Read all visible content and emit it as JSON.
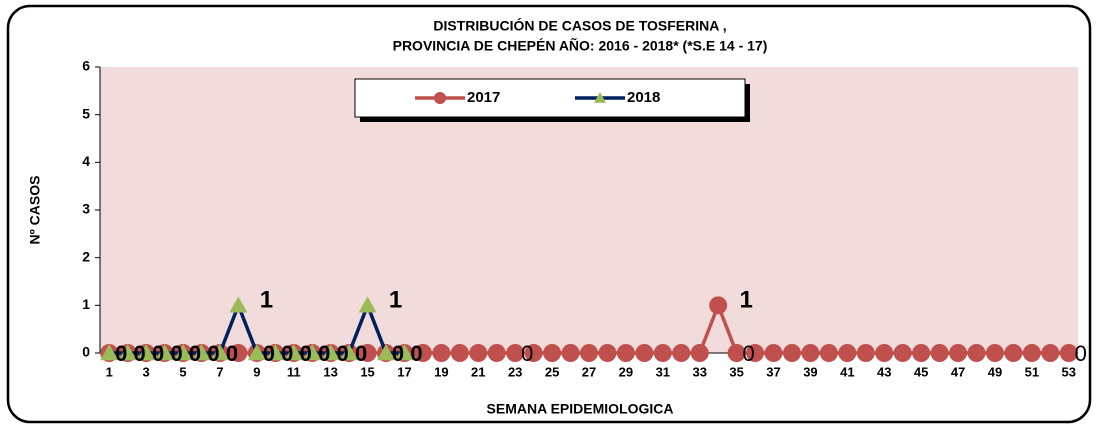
{
  "chart_data": {
    "type": "line",
    "title": [
      "DISTRIBUCIÓN DE CASOS DE TOSFERINA ,",
      "PROVINCIA  DE CHEPÉN  AÑO:  2016 - 2018* (*S.E 14 - 17)"
    ],
    "x_label": "SEMANA EPIDEMIOLOGICA",
    "y_label": "Nº CASOS",
    "categories": [
      1,
      null,
      3,
      null,
      5,
      null,
      7,
      null,
      9,
      null,
      11,
      null,
      13,
      null,
      15,
      null,
      17,
      null,
      19,
      null,
      21,
      null,
      23,
      null,
      25,
      null,
      27,
      null,
      29,
      null,
      31,
      null,
      33,
      null,
      35,
      null,
      37,
      null,
      39,
      null,
      41,
      null,
      43,
      null,
      45,
      null,
      47,
      null,
      49,
      null,
      51,
      null,
      53
    ],
    "series": [
      {
        "name": "2017",
        "color": "#c0504d",
        "marker": "circle",
        "values": [
          0,
          0,
          0,
          0,
          0,
          0,
          0,
          0,
          0,
          0,
          0,
          0,
          0,
          0,
          0,
          0,
          0,
          0,
          0,
          0,
          0,
          0,
          0,
          0,
          0,
          0,
          0,
          0,
          0,
          0,
          0,
          0,
          0,
          1,
          0,
          0,
          0,
          0,
          0,
          0,
          0,
          0,
          0,
          0,
          0,
          0,
          0,
          0,
          0,
          0,
          0,
          0,
          0
        ],
        "value_labels": [
          null,
          null,
          null,
          null,
          null,
          null,
          null,
          null,
          null,
          null,
          null,
          null,
          null,
          null,
          null,
          null,
          null,
          null,
          null,
          null,
          null,
          null,
          "0",
          null,
          null,
          null,
          null,
          null,
          null,
          null,
          null,
          null,
          null,
          "1",
          "0",
          null,
          null,
          null,
          null,
          null,
          null,
          null,
          null,
          null,
          null,
          null,
          null,
          null,
          null,
          null,
          null,
          null,
          "0"
        ]
      },
      {
        "name": "2018",
        "color": "#002060",
        "marker_color": "#9bbb59",
        "marker": "triangle",
        "values": [
          0,
          0,
          0,
          0,
          0,
          0,
          0,
          1,
          0,
          0,
          0,
          0,
          0,
          0,
          1,
          0,
          0,
          null,
          null,
          null,
          null,
          null,
          null,
          null,
          null,
          null,
          null,
          null,
          null,
          null,
          null,
          null,
          null,
          null,
          null,
          null,
          null,
          null,
          null,
          null,
          null,
          null,
          null,
          null,
          null,
          null,
          null,
          null,
          null,
          null,
          null,
          null,
          null
        ],
        "value_labels": [
          "0",
          "0",
          "0",
          "0",
          "0",
          "0",
          "0",
          "1",
          "0",
          "0",
          "0",
          "0",
          "0",
          "0",
          "1",
          "0",
          "0",
          null,
          null,
          null,
          null,
          null,
          null,
          null,
          null,
          null,
          null,
          null,
          null,
          null,
          null,
          null,
          null,
          null,
          null,
          null,
          null,
          null,
          null,
          null,
          null,
          null,
          null,
          null,
          null,
          null,
          null,
          null,
          null,
          null,
          null,
          null,
          null
        ]
      }
    ],
    "ylim": [
      0,
      6
    ],
    "yticks": [
      0,
      1,
      2,
      3,
      4,
      5,
      6
    ],
    "grid": false,
    "legend": "top",
    "plot_background": "#f2dcdb"
  }
}
